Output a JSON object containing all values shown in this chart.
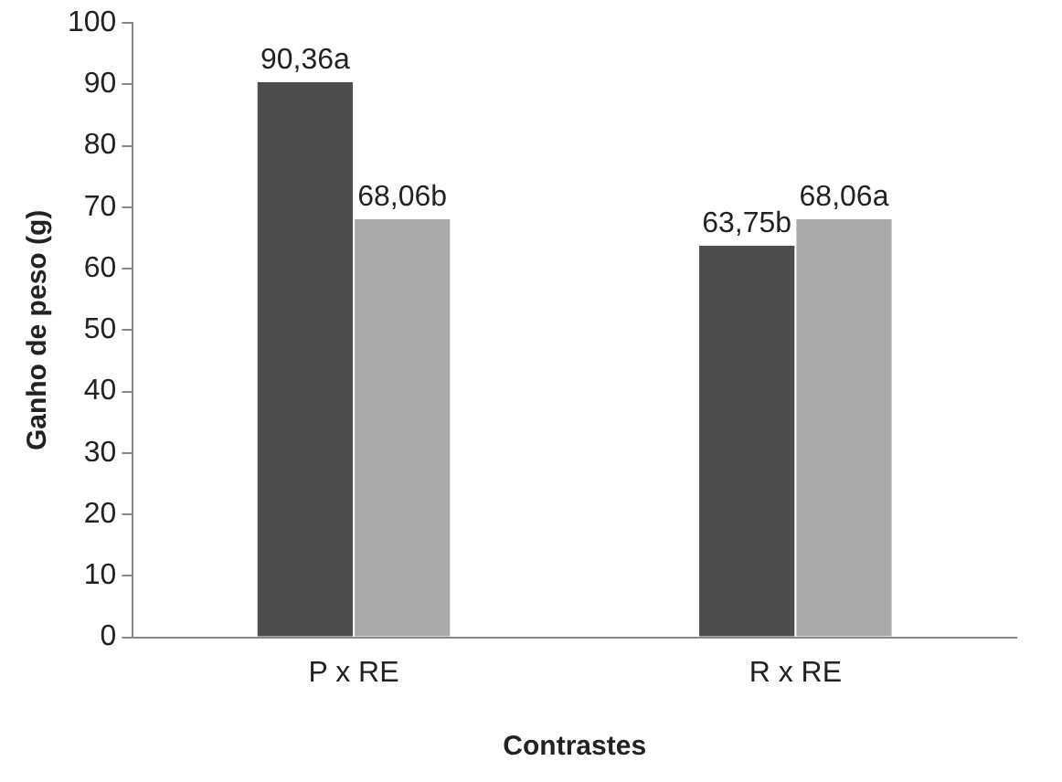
{
  "chart_data": {
    "type": "bar",
    "xlabel": "Contrastes",
    "ylabel": "Ganho de peso (g)",
    "categories": [
      "P x RE",
      "R x RE"
    ],
    "series": [
      {
        "color": "#4d4d4d",
        "values": [
          90.36,
          63.75
        ],
        "value_labels": [
          "90,36a",
          "63,75b"
        ]
      },
      {
        "color": "#a9a9a9",
        "values": [
          68.06,
          68.06
        ],
        "value_labels": [
          "68,06b",
          "68,06a"
        ]
      }
    ],
    "ylim": [
      0,
      100
    ],
    "yticks": [
      0,
      10,
      20,
      30,
      40,
      50,
      60,
      70,
      80,
      90,
      100
    ],
    "grid": false,
    "legend": false
  }
}
